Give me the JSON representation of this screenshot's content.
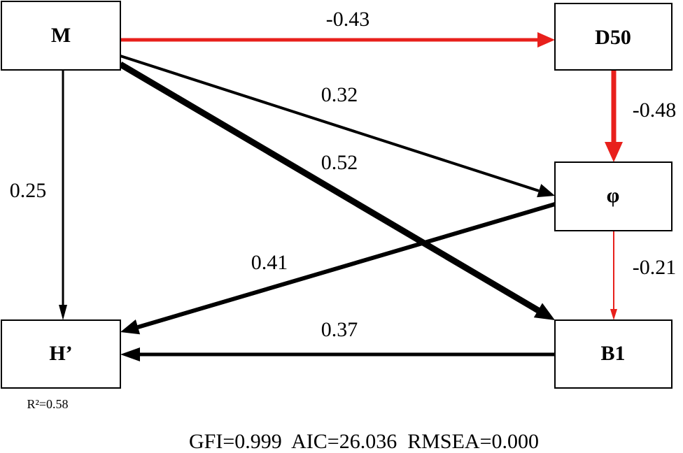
{
  "nodes": [
    {
      "label": "M"
    },
    {
      "label": "D50"
    },
    {
      "label": "φ"
    },
    {
      "label": "H’"
    },
    {
      "label": "B1"
    }
  ],
  "edges": [
    {
      "label": "-0.43"
    },
    {
      "label": "-0.48"
    },
    {
      "label": "0.32"
    },
    {
      "label": "0.52"
    },
    {
      "label": "0.25"
    },
    {
      "label": "0.41"
    },
    {
      "label": "-0.21"
    },
    {
      "label": "0.37"
    }
  ],
  "r_squared": "R²=0.58",
  "fit_statistics": "GFI=0.999  AIC=26.036  RMSEA=0.000"
}
